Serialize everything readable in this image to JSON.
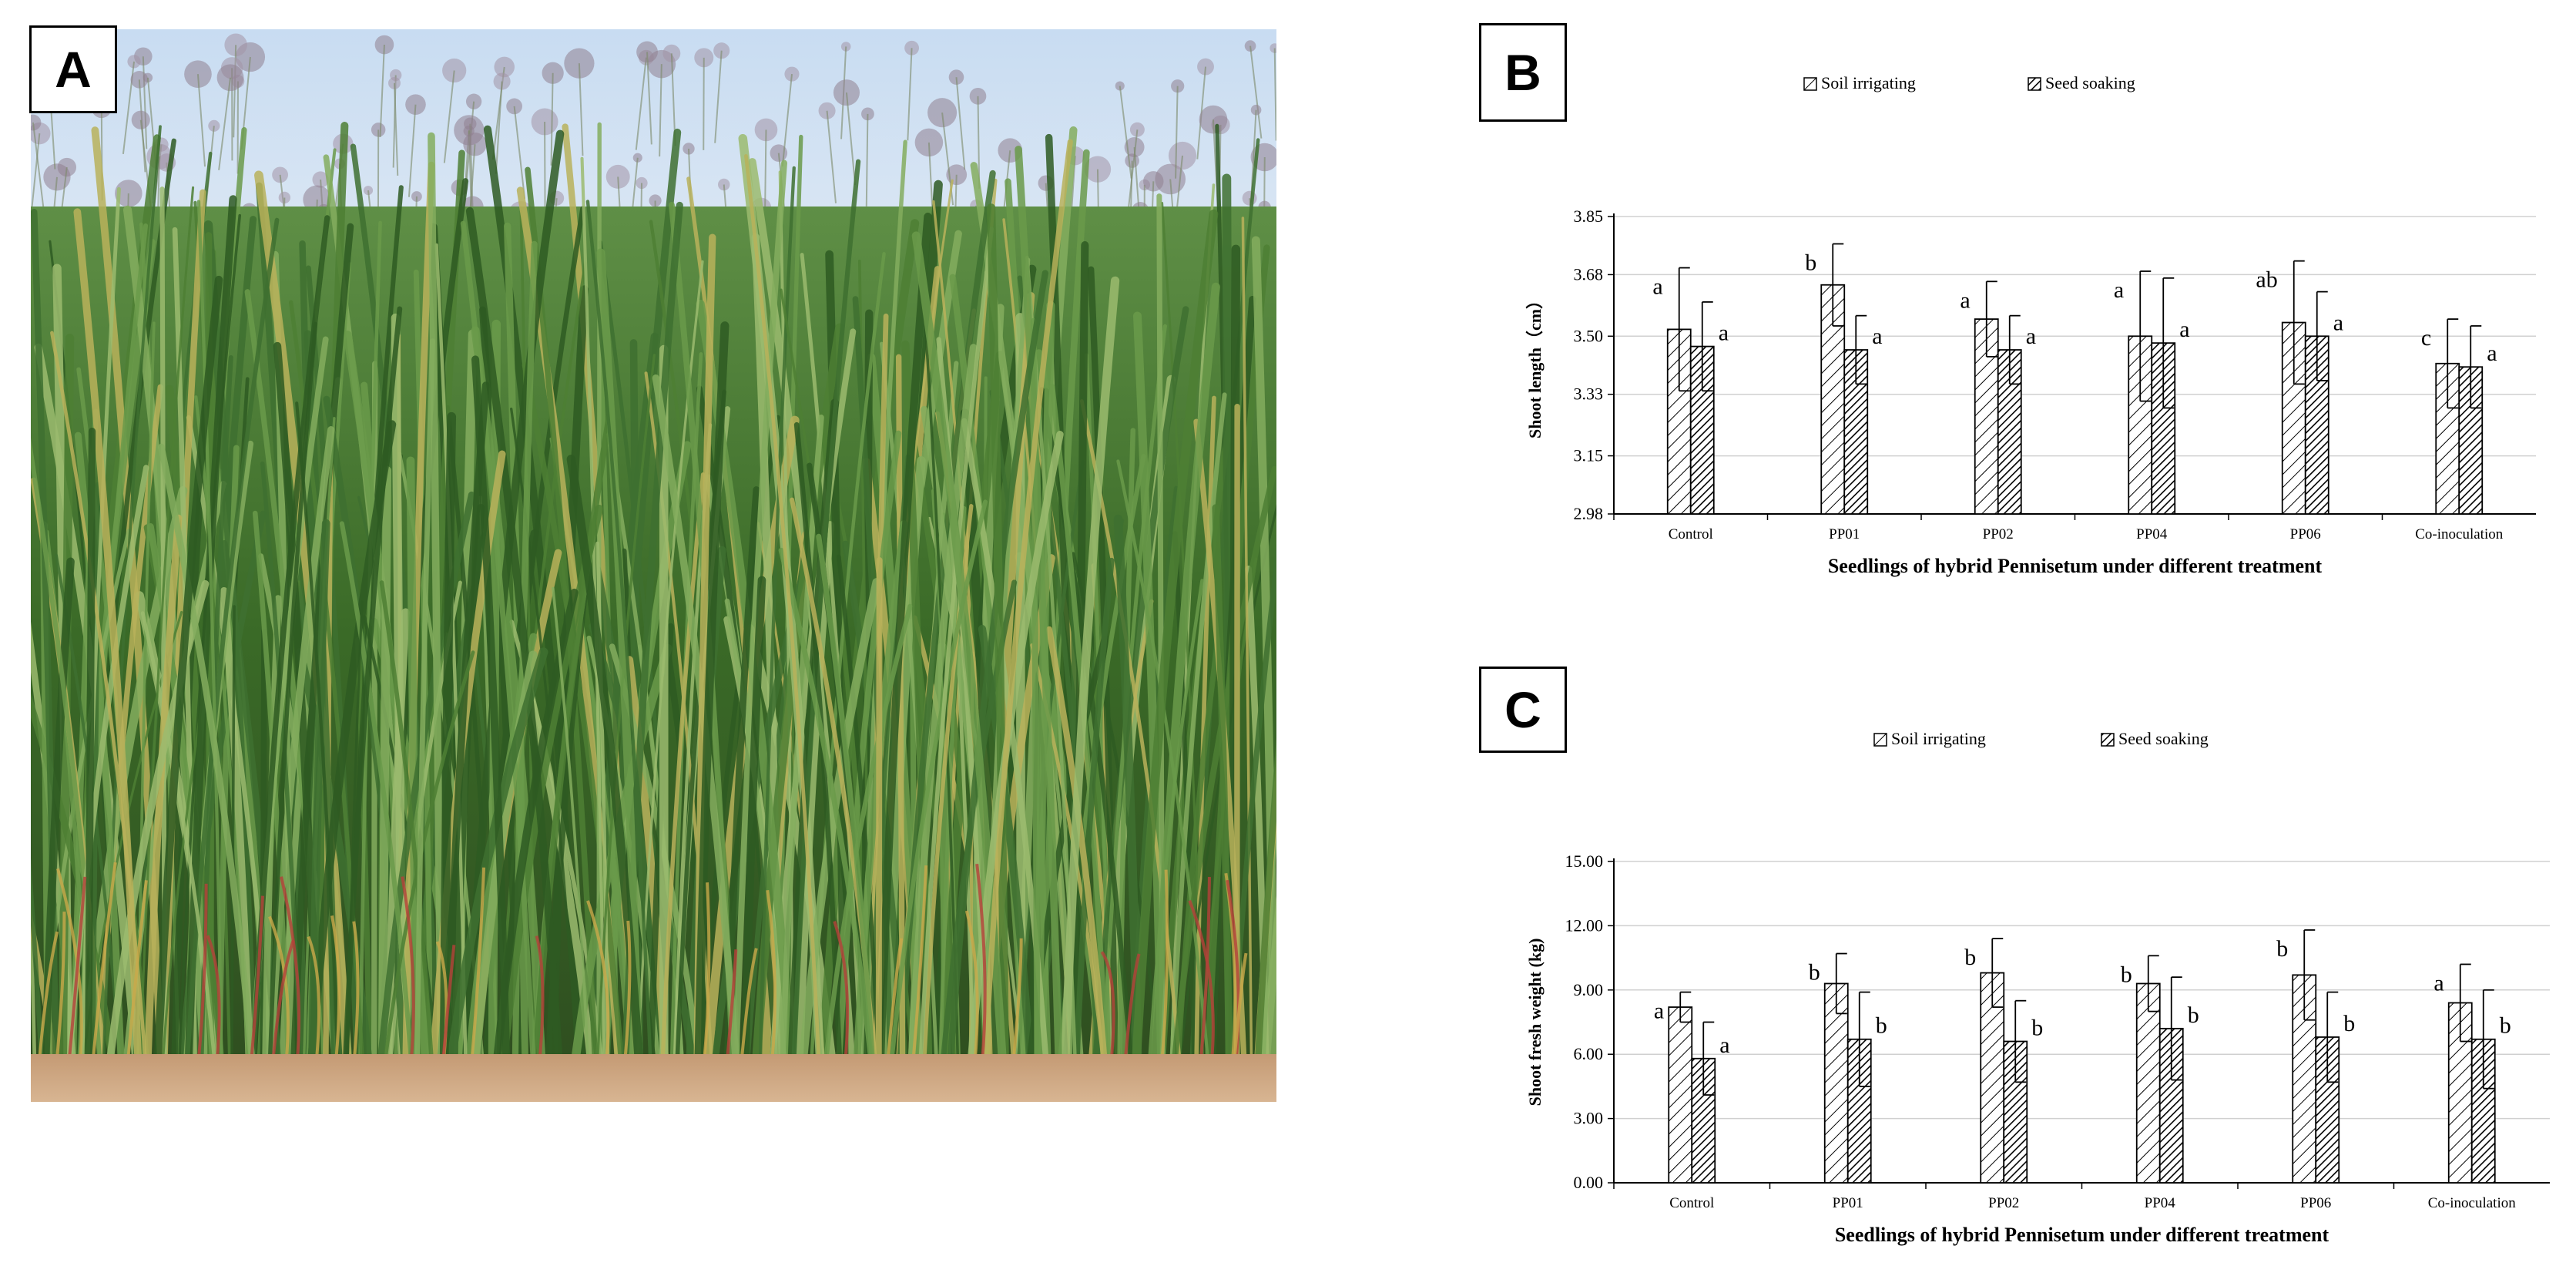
{
  "panels": {
    "a_label": "A",
    "b_label": "B",
    "c_label": "C"
  },
  "photo": {
    "subject": "hybrid Pennisetum grass stand",
    "sky_color": "#b9d3ee",
    "grass_color": "#3f6e2a",
    "soil_color": "#c9a27e"
  },
  "chart_data": [
    {
      "type": "bar",
      "title": "",
      "categories": [
        "Control",
        "PP01",
        "PP02",
        "PP04",
        "PP06",
        "Co-inoculation"
      ],
      "series": [
        {
          "name": "Soil irrigating",
          "values": [
            3.52,
            3.65,
            3.55,
            3.5,
            3.54,
            3.42
          ],
          "errors": [
            0.18,
            0.12,
            0.11,
            0.19,
            0.18,
            0.13
          ],
          "labels": [
            "a",
            "b",
            "a",
            "a",
            "ab",
            "c"
          ]
        },
        {
          "name": "Seed soaking",
          "values": [
            3.47,
            3.46,
            3.46,
            3.48,
            3.5,
            3.41
          ],
          "errors": [
            0.13,
            0.1,
            0.1,
            0.19,
            0.13,
            0.12
          ],
          "labels": [
            "a",
            "a",
            "a",
            "a",
            "a",
            "a"
          ]
        }
      ],
      "xlabel": "Seedlings of hybrid Pennisetum under different treatment",
      "ylabel": "Shoot length（cm）",
      "yticks": [
        "2.98",
        "3.15",
        "3.33",
        "3.50",
        "3.68",
        "3.85"
      ],
      "ylim": [
        2.98,
        3.85
      ],
      "grid": true,
      "legend_position": "top-center",
      "patterns": [
        "sparse-diagonal-hatch",
        "dense-diagonal-hatch"
      ]
    },
    {
      "type": "bar",
      "title": "",
      "categories": [
        "Control",
        "PP01",
        "PP02",
        "PP04",
        "PP06",
        "Co-inoculation"
      ],
      "series": [
        {
          "name": "Soil irrigating",
          "values": [
            8.2,
            9.3,
            9.8,
            9.3,
            9.7,
            8.4
          ],
          "errors": [
            0.7,
            1.4,
            1.6,
            1.3,
            2.1,
            1.8
          ],
          "labels": [
            "a",
            "b",
            "b",
            "b",
            "b",
            "a"
          ]
        },
        {
          "name": "Seed soaking",
          "values": [
            5.8,
            6.7,
            6.6,
            7.2,
            6.8,
            6.7
          ],
          "errors": [
            1.7,
            2.2,
            1.9,
            2.4,
            2.1,
            2.3
          ],
          "labels": [
            "a",
            "b",
            "b",
            "b",
            "b",
            "b"
          ]
        }
      ],
      "xlabel": "Seedlings of hybrid Pennisetum under different treatment",
      "ylabel": "Shoot fresh weight (kg)",
      "yticks": [
        "0.00",
        "3.00",
        "6.00",
        "9.00",
        "12.00",
        "15.00"
      ],
      "ylim": [
        0,
        15
      ],
      "grid": true,
      "legend_position": "top-center",
      "patterns": [
        "sparse-diagonal-hatch",
        "dense-diagonal-hatch"
      ]
    }
  ]
}
